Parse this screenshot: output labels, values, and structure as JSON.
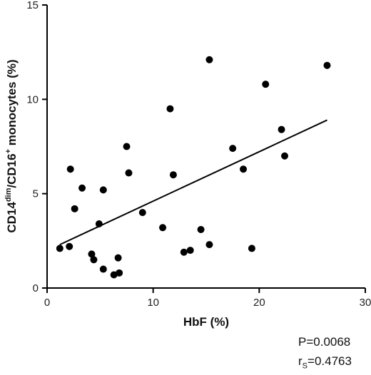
{
  "chart_data": {
    "type": "scatter",
    "xlabel": "HbF (%)",
    "ylabel_parts": {
      "base": "CD14",
      "sup1": "dim",
      "mid": "/CD16",
      "sup2": "+",
      "rest": " monocytes (%)"
    },
    "xlim": [
      0,
      30
    ],
    "ylim": [
      0,
      15
    ],
    "x_ticks": [
      0,
      10,
      20,
      30
    ],
    "y_ticks": [
      0,
      5,
      10,
      15
    ],
    "grid": false,
    "points": [
      {
        "x": 1.2,
        "y": 2.1
      },
      {
        "x": 2.1,
        "y": 2.2
      },
      {
        "x": 2.2,
        "y": 6.3
      },
      {
        "x": 2.6,
        "y": 4.2
      },
      {
        "x": 3.3,
        "y": 5.3
      },
      {
        "x": 4.2,
        "y": 1.8
      },
      {
        "x": 4.4,
        "y": 1.5
      },
      {
        "x": 4.9,
        "y": 3.4
      },
      {
        "x": 5.3,
        "y": 5.2
      },
      {
        "x": 5.3,
        "y": 1.0
      },
      {
        "x": 6.3,
        "y": 0.7
      },
      {
        "x": 6.7,
        "y": 1.6
      },
      {
        "x": 6.8,
        "y": 0.8
      },
      {
        "x": 7.5,
        "y": 7.5
      },
      {
        "x": 7.7,
        "y": 6.1
      },
      {
        "x": 9.0,
        "y": 4.0
      },
      {
        "x": 10.9,
        "y": 3.2
      },
      {
        "x": 11.6,
        "y": 9.5
      },
      {
        "x": 11.9,
        "y": 6.0
      },
      {
        "x": 12.9,
        "y": 1.9
      },
      {
        "x": 13.5,
        "y": 2.0
      },
      {
        "x": 14.5,
        "y": 3.1
      },
      {
        "x": 15.3,
        "y": 12.1
      },
      {
        "x": 15.3,
        "y": 2.3
      },
      {
        "x": 17.5,
        "y": 7.4
      },
      {
        "x": 18.5,
        "y": 6.3
      },
      {
        "x": 19.3,
        "y": 2.1
      },
      {
        "x": 20.6,
        "y": 10.8
      },
      {
        "x": 22.1,
        "y": 8.4
      },
      {
        "x": 22.4,
        "y": 7.0
      },
      {
        "x": 26.4,
        "y": 11.8
      }
    ],
    "regression_line": {
      "x": [
        1.2,
        26.4
      ],
      "y": [
        2.3,
        8.9
      ]
    },
    "annotations": {
      "p_value": "P=0.0068",
      "rs_prefix": "r",
      "rs_sub": "S",
      "rs_value": "=0.4763"
    },
    "colors": {
      "points": "#000000",
      "line": "#000000",
      "axes": "#000000"
    }
  }
}
